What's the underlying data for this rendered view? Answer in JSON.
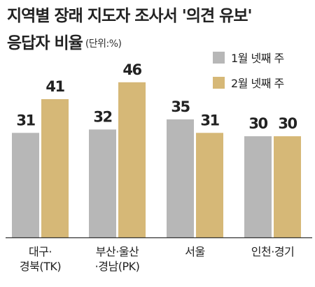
{
  "title": {
    "line1": "지역별 장래 지도자 조사서 '의견 유보'",
    "line2": "응답자 비율",
    "unit": "(단위:%)"
  },
  "colors": {
    "series1": "#b7b7b7",
    "series2": "#d6b877",
    "axis": "#333333"
  },
  "chart_data": {
    "type": "bar",
    "title": "지역별 장래 지도자 조사서 '의견 유보' 응답자 비율",
    "unit": "(단위:%)",
    "categories": [
      [
        "대구·",
        "경북(TK)"
      ],
      [
        "부산·울산",
        "·경남(PK)"
      ],
      [
        "서울"
      ],
      [
        "인천·경기"
      ]
    ],
    "series": [
      {
        "name": "1월 넷째 주",
        "values": [
          31,
          32,
          35,
          30
        ]
      },
      {
        "name": "2월 넷째 주",
        "values": [
          41,
          46,
          31,
          30
        ]
      }
    ],
    "ylim": [
      0,
      55
    ],
    "grid": false,
    "legend": "top-right"
  }
}
